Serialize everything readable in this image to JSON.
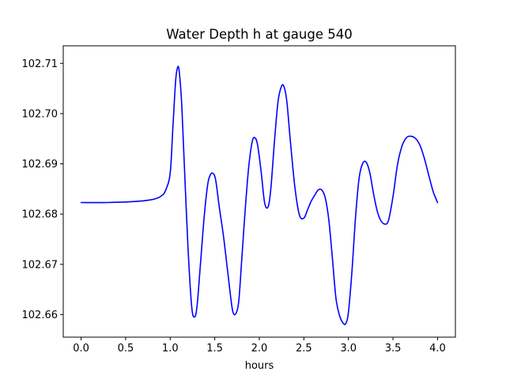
{
  "chart_data": {
    "type": "line",
    "title": "Water Depth h at gauge 540",
    "xlabel": "hours",
    "ylabel": "",
    "xlim": [
      -0.2,
      4.2
    ],
    "ylim": [
      102.6555,
      102.7135
    ],
    "x_ticks": [
      0.0,
      0.5,
      1.0,
      1.5,
      2.0,
      2.5,
      3.0,
      3.5,
      4.0
    ],
    "x_tick_labels": [
      "0.0",
      "0.5",
      "1.0",
      "1.5",
      "2.0",
      "2.5",
      "3.0",
      "3.5",
      "4.0"
    ],
    "y_ticks": [
      102.66,
      102.67,
      102.68,
      102.69,
      102.7,
      102.71
    ],
    "y_tick_labels": [
      "102.66",
      "102.67",
      "102.68",
      "102.69",
      "102.70",
      "102.71"
    ],
    "grid": false,
    "line_color": "#0000ff",
    "series": [
      {
        "x": [
          0.0,
          0.3,
          0.6,
          0.8,
          0.9,
          0.95,
          1.0,
          1.03,
          1.06,
          1.08,
          1.1,
          1.13,
          1.16,
          1.2,
          1.24,
          1.27,
          1.3,
          1.34,
          1.38,
          1.42,
          1.45,
          1.48,
          1.51,
          1.55,
          1.6,
          1.65,
          1.7,
          1.74,
          1.77,
          1.8,
          1.84,
          1.88,
          1.92,
          1.95,
          1.98,
          2.02,
          2.06,
          2.1,
          2.13,
          2.17,
          2.21,
          2.25,
          2.28,
          2.31,
          2.35,
          2.4,
          2.45,
          2.5,
          2.54,
          2.58,
          2.62,
          2.66,
          2.7,
          2.74,
          2.78,
          2.82,
          2.86,
          2.9,
          2.94,
          2.97,
          3.0,
          3.04,
          3.08,
          3.12,
          3.16,
          3.2,
          3.24,
          3.28,
          3.32,
          3.36,
          3.41,
          3.45,
          3.5,
          3.55,
          3.6,
          3.65,
          3.7,
          3.75,
          3.8,
          3.85,
          3.9,
          3.95,
          4.0
        ],
        "y": [
          102.6823,
          102.6823,
          102.6825,
          102.6829,
          102.6836,
          102.6848,
          102.6882,
          102.6972,
          102.7063,
          102.709,
          102.7086,
          102.7016,
          102.6892,
          102.6732,
          102.6618,
          102.6595,
          102.6615,
          102.6702,
          102.6792,
          102.6858,
          102.6878,
          102.6881,
          102.6868,
          102.6815,
          102.6753,
          102.6678,
          102.6608,
          102.6603,
          102.6628,
          102.6702,
          102.6805,
          102.6892,
          102.6944,
          102.6952,
          102.6938,
          102.6885,
          102.6822,
          102.6815,
          102.6852,
          102.6945,
          102.7024,
          102.7055,
          102.7052,
          102.7022,
          102.6942,
          102.6852,
          102.6798,
          102.6792,
          102.6808,
          102.6825,
          102.6837,
          102.6848,
          102.6848,
          102.6832,
          102.6788,
          102.6712,
          102.6632,
          102.6598,
          102.6583,
          102.6582,
          102.6605,
          102.6688,
          102.6795,
          102.6872,
          102.6901,
          102.6903,
          102.6882,
          102.6842,
          102.6808,
          102.6788,
          102.678,
          102.6788,
          102.6835,
          102.6898,
          102.6935,
          102.6952,
          102.6955,
          102.6951,
          102.6938,
          102.6912,
          102.6878,
          102.6845,
          102.6823
        ]
      }
    ]
  }
}
